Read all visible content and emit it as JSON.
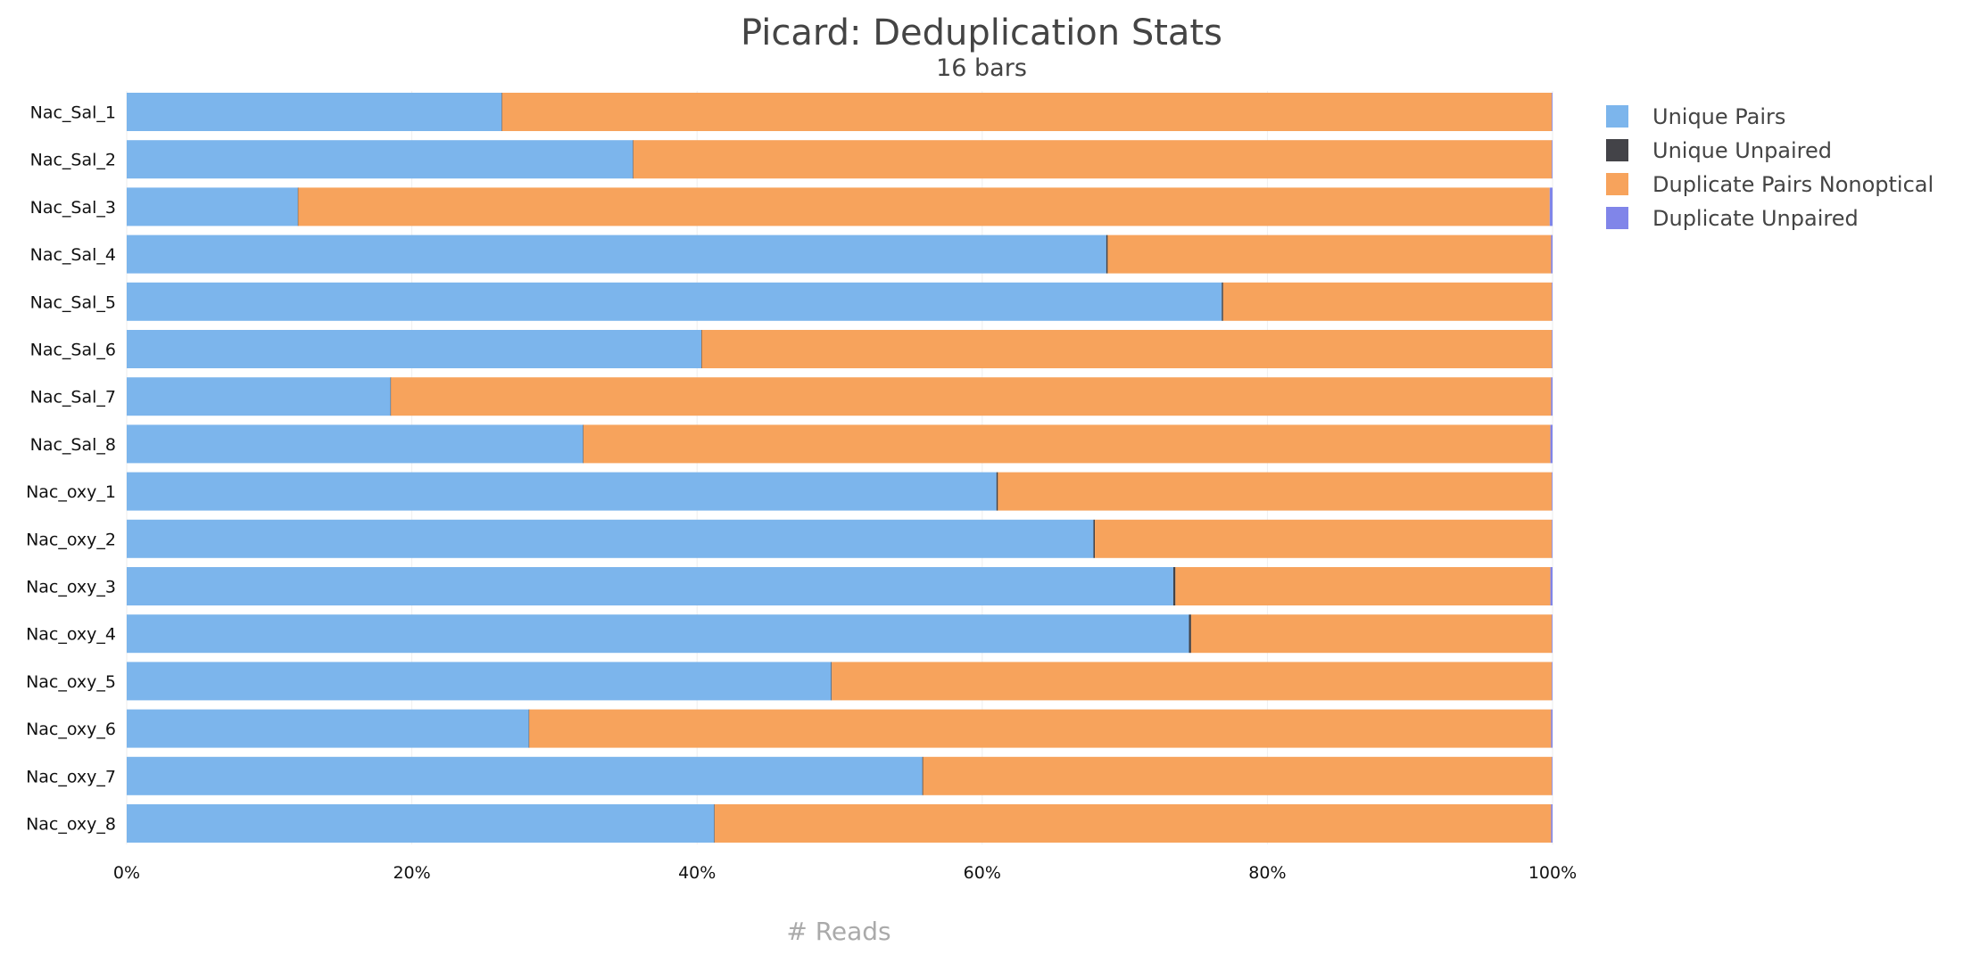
{
  "chart_data": {
    "type": "bar",
    "orientation": "horizontal",
    "stacked": true,
    "normalized": true,
    "title": "Picard: Deduplication Stats",
    "subtitle": "16 bars",
    "xlabel": "# Reads",
    "ylabel": "",
    "xlim": [
      0,
      100
    ],
    "x_ticks": [
      "0%",
      "20%",
      "40%",
      "60%",
      "80%",
      "100%"
    ],
    "grid": "vertical",
    "legend_position": "top-right",
    "categories": [
      "Nac_Sal_1",
      "Nac_Sal_2",
      "Nac_Sal_3",
      "Nac_Sal_4",
      "Nac_Sal_5",
      "Nac_Sal_6",
      "Nac_Sal_7",
      "Nac_Sal_8",
      "Nac_oxy_1",
      "Nac_oxy_2",
      "Nac_oxy_3",
      "Nac_oxy_4",
      "Nac_oxy_5",
      "Nac_oxy_6",
      "Nac_oxy_7",
      "Nac_oxy_8"
    ],
    "series": [
      {
        "name": "Unique Pairs",
        "color": "#7cb5ec",
        "values": [
          26.3,
          35.5,
          12.0,
          68.7,
          76.8,
          40.3,
          18.5,
          32.0,
          61.0,
          67.8,
          73.4,
          74.5,
          49.4,
          28.2,
          55.8,
          41.2
        ]
      },
      {
        "name": "Unique Unpaired",
        "color": "#434348",
        "values": [
          0.03,
          0.03,
          0.03,
          0.1,
          0.1,
          0.03,
          0.03,
          0.03,
          0.1,
          0.1,
          0.15,
          0.15,
          0.05,
          0.03,
          0.05,
          0.03
        ]
      },
      {
        "name": "Duplicate Pairs Nonoptical",
        "color": "#f7a35c",
        "values": [
          73.62,
          64.42,
          87.77,
          31.1,
          23.05,
          59.62,
          81.37,
          67.82,
          38.85,
          32.05,
          26.3,
          25.3,
          50.5,
          71.67,
          44.1,
          58.67
        ]
      },
      {
        "name": "Duplicate Unpaired",
        "color": "#8085e9",
        "values": [
          0.05,
          0.05,
          0.2,
          0.1,
          0.05,
          0.05,
          0.1,
          0.15,
          0.05,
          0.05,
          0.15,
          0.05,
          0.05,
          0.1,
          0.05,
          0.1
        ]
      }
    ]
  }
}
